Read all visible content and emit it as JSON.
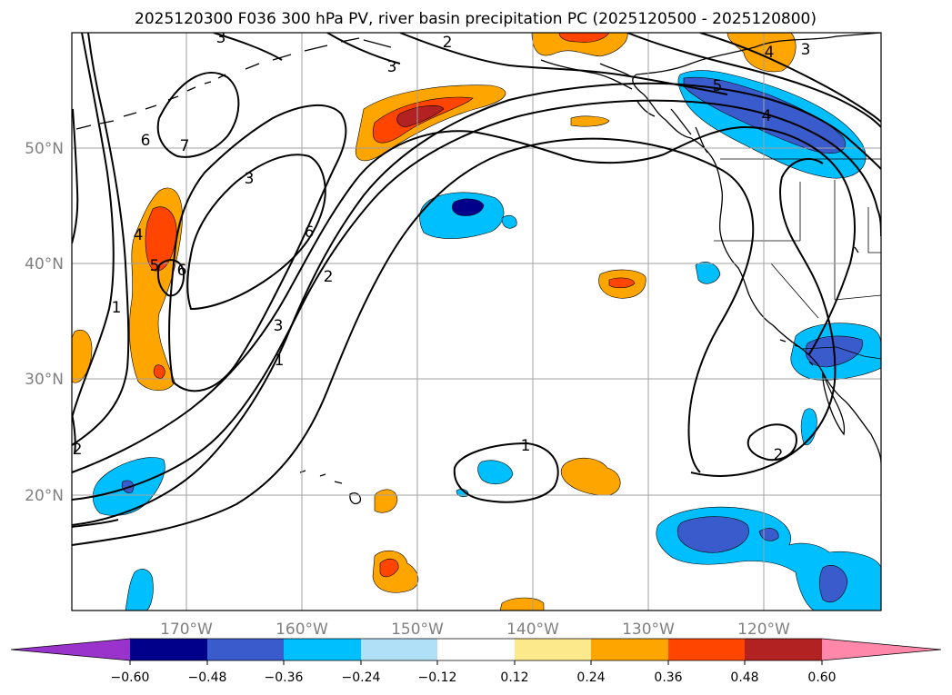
{
  "title": "2025120300 F036 300 hPa PV, river basin precipitation PC (2025120500 - 2025120800)",
  "map": {
    "lon_range": [
      -180,
      -110
    ],
    "lat_range": [
      10,
      60
    ],
    "lon_labels": [
      "170°W",
      "160°W",
      "150°W",
      "140°W",
      "130°W",
      "120°W"
    ],
    "lat_labels": [
      "50°N",
      "40°N",
      "30°N",
      "20°N"
    ]
  },
  "colorbar": {
    "ticks": [
      "−0.60",
      "−0.48",
      "−0.36",
      "−0.24",
      "−0.12",
      "0.12",
      "0.24",
      "0.36",
      "0.48",
      "0.60"
    ],
    "colors": {
      "under": "#9933cc",
      "b1": "#00008b",
      "b2": "#3a5bcc",
      "b3": "#00bfff",
      "b4": "#b0e0f8",
      "neutral": "#ffffff",
      "p1": "#fce98b",
      "p2": "#ffa500",
      "p3": "#ff4500",
      "p4": "#b22222",
      "over": "#ff88aa"
    }
  },
  "contour_labels": {
    "l2a": "2",
    "l3a": "3",
    "l3b": "3",
    "l4a": "4",
    "l3c": "3",
    "l5a": "5",
    "l6a": "6",
    "l7a": "7",
    "l3d": "3",
    "l6b": "6",
    "l4b": "4",
    "l5b": "5",
    "l6c": "6",
    "l1a": "1",
    "l2b": "2",
    "l3e": "3",
    "l1b": "1",
    "l2c": "2",
    "l1c": "1",
    "l2d": "2",
    "l4c": "4"
  }
}
